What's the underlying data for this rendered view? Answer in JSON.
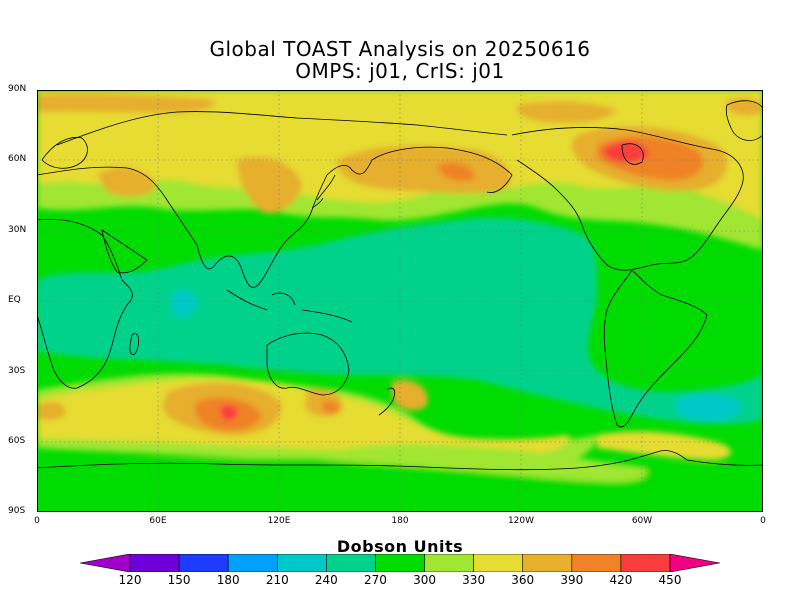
{
  "title_line1": "Global TOAST Analysis on 20250616",
  "title_line2": "OMPS: j01, CrIS: j01",
  "lat_labels": [
    "90N",
    "60N",
    "30N",
    "EQ",
    "30S",
    "60S",
    "90S"
  ],
  "lon_labels": [
    "0",
    "60E",
    "120E",
    "180",
    "120W",
    "60W",
    "0"
  ],
  "colorbar": {
    "units": "Dobson Units",
    "ticks": [
      "120",
      "150",
      "180",
      "210",
      "240",
      "270",
      "300",
      "330",
      "360",
      "390",
      "420",
      "450"
    ],
    "colors": [
      "#a000c8",
      "#6e00dc",
      "#1e3cff",
      "#00a0ff",
      "#00c8c8",
      "#00d28c",
      "#00dc00",
      "#a0e632",
      "#e6dc32",
      "#e6af2d",
      "#f08228",
      "#fa3c3c",
      "#f00082"
    ]
  }
}
